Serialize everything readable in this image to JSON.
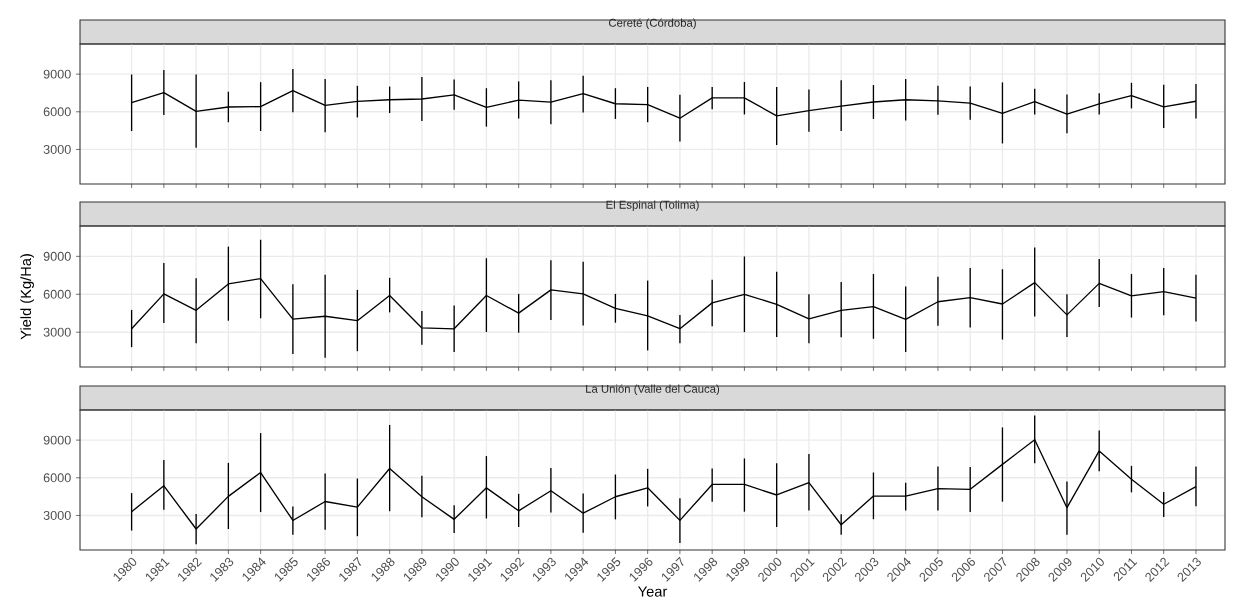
{
  "chart_data": [
    {
      "type": "line",
      "title": "Cereté (Córdoba)",
      "tick_labels": "y",
      "grid": true,
      "ylim": [
        250,
        11400
      ],
      "yticks": [
        3000,
        6000,
        9000
      ],
      "categories": [
        "1980",
        "1981",
        "1982",
        "1983",
        "1984",
        "1985",
        "1986",
        "1987",
        "1988",
        "1989",
        "1990",
        "1991",
        "1992",
        "1993",
        "1994",
        "1995",
        "1996",
        "1997",
        "1998",
        "1999",
        "2000",
        "2001",
        "2002",
        "2003",
        "2004",
        "2005",
        "2006",
        "2007",
        "2008",
        "2009",
        "2010",
        "2011",
        "2012",
        "2013"
      ],
      "series": [
        {
          "color": "#000000",
          "values": [
            6730,
            7530,
            6030,
            6380,
            6410,
            7690,
            6510,
            6830,
            6960,
            7020,
            7340,
            6350,
            6930,
            6770,
            7440,
            6640,
            6570,
            5490,
            7110,
            7110,
            5670,
            6090,
            6450,
            6780,
            6960,
            6870,
            6690,
            5880,
            6810,
            5820,
            6630,
            7290,
            6390,
            6840
          ],
          "errors": [
            [
              4470,
              8970
            ],
            [
              5750,
              9320
            ],
            [
              3130,
              8970
            ],
            [
              5170,
              7600
            ],
            [
              4470,
              8360
            ],
            [
              5970,
              9410
            ],
            [
              4370,
              8620
            ],
            [
              5550,
              8070
            ],
            [
              5900,
              8010
            ],
            [
              5270,
              8780
            ],
            [
              6160,
              8580
            ],
            [
              4820,
              7880
            ],
            [
              5460,
              8420
            ],
            [
              5010,
              8520
            ],
            [
              5940,
              8870
            ],
            [
              5430,
              7880
            ],
            [
              5170,
              7980
            ],
            [
              3630,
              7350
            ],
            [
              6210,
              7980
            ],
            [
              5790,
              8370
            ],
            [
              3360,
              7980
            ],
            [
              4410,
              7770
            ],
            [
              4470,
              8520
            ],
            [
              5430,
              8130
            ],
            [
              5310,
              8610
            ],
            [
              5760,
              8070
            ],
            [
              5370,
              8010
            ],
            [
              3480,
              8340
            ],
            [
              5790,
              7830
            ],
            [
              4290,
              7380
            ],
            [
              5790,
              7470
            ],
            [
              6270,
              8310
            ],
            [
              4710,
              8160
            ],
            [
              5460,
              8220
            ]
          ]
        }
      ]
    },
    {
      "type": "line",
      "title": "El Espinal (Tolima)",
      "ylabel": "Yield (Kg/Ha)",
      "tick_labels": "y",
      "grid": true,
      "ylim": [
        250,
        11400
      ],
      "yticks": [
        3000,
        6000,
        9000
      ],
      "categories": [
        "1980",
        "1981",
        "1982",
        "1983",
        "1984",
        "1985",
        "1986",
        "1987",
        "1988",
        "1989",
        "1990",
        "1991",
        "1992",
        "1993",
        "1994",
        "1995",
        "1996",
        "1997",
        "1998",
        "1999",
        "2000",
        "2001",
        "2002",
        "2003",
        "2004",
        "2005",
        "2006",
        "2007",
        "2008",
        "2009",
        "2010",
        "2011",
        "2012",
        "2013"
      ],
      "series": [
        {
          "color": "#000000",
          "values": [
            3270,
            6030,
            4730,
            6820,
            7240,
            4030,
            4260,
            3910,
            5900,
            3340,
            3270,
            5900,
            4510,
            6350,
            6030,
            4890,
            4290,
            3280,
            5320,
            6000,
            5200,
            4050,
            4730,
            5020,
            4020,
            5410,
            5730,
            5230,
            6920,
            4370,
            6860,
            5880,
            6210,
            5700
          ],
          "errors": [
            [
              1820,
              4760
            ],
            [
              3720,
              8470
            ],
            [
              2130,
              7270
            ],
            [
              3910,
              9770
            ],
            [
              4100,
              10310
            ],
            [
              1280,
              6790
            ],
            [
              990,
              7550
            ],
            [
              1500,
              6350
            ],
            [
              4570,
              7300
            ],
            [
              2010,
              4670
            ],
            [
              1440,
              5110
            ],
            [
              3020,
              8850
            ],
            [
              2960,
              6030
            ],
            [
              3970,
              8690
            ],
            [
              3530,
              8570
            ],
            [
              3750,
              6030
            ],
            [
              1560,
              7080
            ],
            [
              2120,
              4370
            ],
            [
              3480,
              7150
            ],
            [
              3010,
              8990
            ],
            [
              2630,
              7780
            ],
            [
              2120,
              6000
            ],
            [
              2600,
              6980
            ],
            [
              2480,
              7600
            ],
            [
              1440,
              6620
            ],
            [
              3510,
              7390
            ],
            [
              3370,
              8070
            ],
            [
              2420,
              7980
            ],
            [
              4250,
              9700
            ],
            [
              2630,
              6000
            ],
            [
              4990,
              8780
            ],
            [
              4160,
              7600
            ],
            [
              4340,
              8070
            ],
            [
              3840,
              7540
            ]
          ]
        }
      ]
    },
    {
      "type": "line",
      "title": "La Unión (Valle del Cauca)",
      "xlabel": "Year",
      "grid": true,
      "ylim": [
        250,
        11400
      ],
      "yticks": [
        3000,
        6000,
        9000
      ],
      "categories": [
        "1980",
        "1981",
        "1982",
        "1983",
        "1984",
        "1985",
        "1986",
        "1987",
        "1988",
        "1989",
        "1990",
        "1991",
        "1992",
        "1993",
        "1994",
        "1995",
        "1996",
        "1997",
        "1998",
        "1999",
        "2000",
        "2001",
        "2002",
        "2003",
        "2004",
        "2005",
        "2006",
        "2007",
        "2008",
        "2009",
        "2010",
        "2011",
        "2012",
        "2013"
      ],
      "series": [
        {
          "color": "#000000",
          "values": [
            3300,
            5360,
            1920,
            4520,
            6420,
            2600,
            4110,
            3660,
            6740,
            4490,
            2690,
            5200,
            3370,
            4970,
            3180,
            4490,
            5200,
            2610,
            5470,
            5470,
            4630,
            5610,
            2260,
            4540,
            4540,
            5140,
            5080,
            7070,
            9030,
            3620,
            8140,
            5880,
            3890,
            5290
          ],
          "errors": [
            [
              1800,
              4780
            ],
            [
              3460,
              7410
            ],
            [
              700,
              3110
            ],
            [
              1920,
              7190
            ],
            [
              3270,
              9560
            ],
            [
              1470,
              3720
            ],
            [
              1860,
              6350
            ],
            [
              1350,
              5940
            ],
            [
              3340,
              10210
            ],
            [
              2850,
              6160
            ],
            [
              1600,
              3820
            ],
            [
              2760,
              7730
            ],
            [
              2080,
              4720
            ],
            [
              3240,
              6770
            ],
            [
              1630,
              4750
            ],
            [
              2690,
              6260
            ],
            [
              3720,
              6710
            ],
            [
              800,
              4370
            ],
            [
              4100,
              6740
            ],
            [
              3300,
              7540
            ],
            [
              2080,
              7160
            ],
            [
              3390,
              7900
            ],
            [
              1460,
              3090
            ],
            [
              2700,
              6420
            ],
            [
              3390,
              5610
            ],
            [
              3390,
              6890
            ],
            [
              3270,
              6860
            ],
            [
              4100,
              10010
            ],
            [
              7160,
              10960
            ],
            [
              1460,
              5700
            ],
            [
              6530,
              9770
            ],
            [
              4840,
              6950
            ],
            [
              2880,
              4870
            ],
            [
              3740,
              6890
            ]
          ]
        }
      ]
    }
  ]
}
